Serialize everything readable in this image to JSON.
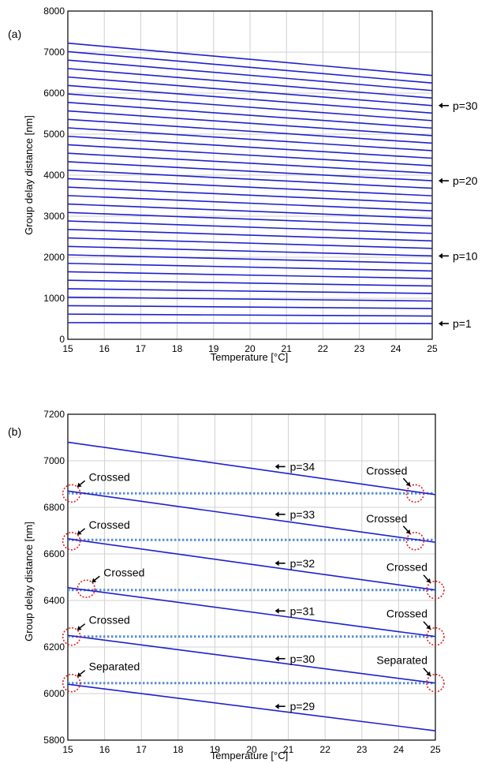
{
  "chart_data": [
    {
      "panel_label": "(a)",
      "type": "line",
      "xlabel": "Temperature [°C]",
      "ylabel": "Group delay distance [nm]",
      "xlim": [
        15,
        25
      ],
      "ylim": [
        0,
        8000
      ],
      "xticks": [
        15,
        16,
        17,
        18,
        19,
        20,
        21,
        22,
        23,
        24,
        25
      ],
      "yticks": [
        0,
        1000,
        2000,
        3000,
        4000,
        5000,
        6000,
        7000,
        8000
      ],
      "grid": true,
      "line_color": "#1f1fcf",
      "series_rule": "group delay distance of order p (p = 1..34): y = 206.4*p + 200 - 2.32*p*(T - 15)",
      "series": {
        "p_values": [
          1,
          2,
          3,
          4,
          5,
          6,
          7,
          8,
          9,
          10,
          11,
          12,
          13,
          14,
          15,
          16,
          17,
          18,
          19,
          20,
          21,
          22,
          23,
          24,
          25,
          26,
          27,
          28,
          29,
          30,
          31,
          32,
          33,
          34
        ],
        "y_at_15C": [
          406.4,
          612.8,
          819.2,
          1025.6,
          1232.0,
          1438.4,
          1644.8,
          1851.2,
          2057.6,
          2264.0,
          2470.4,
          2676.8,
          2883.2,
          3089.6,
          3296.0,
          3502.4,
          3708.8,
          3915.2,
          4121.6,
          4328.0,
          4534.4,
          4740.8,
          4947.2,
          5153.6,
          5360.0,
          5566.4,
          5772.8,
          5979.2,
          6185.6,
          6392.0,
          6598.4,
          6804.8,
          7011.2,
          7217.6
        ],
        "slope_per_C": [
          -2.32,
          -4.64,
          -6.96,
          -9.28,
          -11.6,
          -13.92,
          -16.24,
          -18.56,
          -20.88,
          -23.2,
          -25.52,
          -27.84,
          -30.16,
          -32.48,
          -34.8,
          -37.12,
          -39.44,
          -41.76,
          -44.08,
          -46.4,
          -48.72,
          -51.04,
          -53.36,
          -55.68,
          -58.0,
          -60.32,
          -62.64,
          -64.96,
          -67.28,
          -69.6,
          -71.92,
          -74.24,
          -76.56,
          -78.88
        ]
      },
      "annotations": [
        {
          "text": "p=30",
          "p": 30
        },
        {
          "text": "p=20",
          "p": 20
        },
        {
          "text": "p=10",
          "p": 10
        },
        {
          "text": "p=1",
          "p": 1
        }
      ]
    },
    {
      "panel_label": "(b)",
      "type": "line",
      "xlabel": "Temperature [°C]",
      "ylabel": "Group delay distance [nm]",
      "xlim": [
        15,
        25
      ],
      "ylim": [
        5800,
        7200
      ],
      "xticks": [
        15,
        16,
        17,
        18,
        19,
        20,
        21,
        22,
        23,
        24,
        25
      ],
      "yticks": [
        5800,
        6000,
        6200,
        6400,
        6600,
        6800,
        7000,
        7200
      ],
      "grid": true,
      "line_color": "#1f1fcf",
      "dotted_color": "#5b8fd0",
      "circle_color": "#e02020",
      "series": [
        {
          "label": "p=34",
          "x": [
            15,
            25
          ],
          "y": [
            7080,
            6855
          ],
          "label_x": 20.7,
          "label_y": 6975
        },
        {
          "label": "p=33",
          "x": [
            15,
            25
          ],
          "y": [
            6870,
            6650
          ],
          "label_x": 20.7,
          "label_y": 6770
        },
        {
          "label": "p=32",
          "x": [
            15,
            25
          ],
          "y": [
            6665,
            6445
          ],
          "label_x": 20.7,
          "label_y": 6560
        },
        {
          "label": "p=31",
          "x": [
            15,
            25
          ],
          "y": [
            6455,
            6245
          ],
          "label_x": 20.7,
          "label_y": 6355
        },
        {
          "label": "p=30",
          "x": [
            15,
            25
          ],
          "y": [
            6250,
            6045
          ],
          "label_x": 20.7,
          "label_y": 6150
        },
        {
          "label": "p=29",
          "x": [
            15,
            25
          ],
          "y": [
            6040,
            5840
          ],
          "label_x": 20.7,
          "label_y": 5945
        }
      ],
      "dotted_levels": [
        6860,
        6660,
        6445,
        6245,
        6045
      ],
      "markers": [
        {
          "text": "Crossed",
          "x": 15.1,
          "y": 6860
        },
        {
          "text": "Crossed",
          "x": 24.45,
          "y": 6860
        },
        {
          "text": "Crossed",
          "x": 15.1,
          "y": 6655
        },
        {
          "text": "Crossed",
          "x": 24.45,
          "y": 6655
        },
        {
          "text": "Crossed",
          "x": 15.5,
          "y": 6450
        },
        {
          "text": "Crossed",
          "x": 25.0,
          "y": 6445
        },
        {
          "text": "Crossed",
          "x": 15.1,
          "y": 6245
        },
        {
          "text": "Crossed",
          "x": 25.0,
          "y": 6245
        },
        {
          "text": "Separated",
          "x": 15.1,
          "y": 6045
        },
        {
          "text": "Separated",
          "x": 25.0,
          "y": 6045
        }
      ]
    }
  ]
}
